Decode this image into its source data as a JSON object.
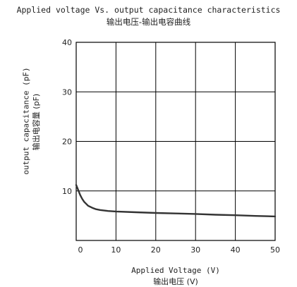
{
  "chart_data": {
    "type": "line",
    "title": "Applied voltage Vs. output capacitance characteristics",
    "title_cn": "输出电压-输出电容曲线",
    "xlabel": "Applied Voltage (V)",
    "xlabel_cn": "输出电压 (V)",
    "ylabel": "output capacitance (pF)",
    "ylabel_cn": "输出电容量 (pF)",
    "xlim": [
      0,
      50
    ],
    "ylim": [
      0,
      40
    ],
    "xticks": [
      0,
      10,
      20,
      30,
      40,
      50
    ],
    "yticks": [
      10,
      20,
      30,
      40
    ],
    "grid": true,
    "line_color": "#333333",
    "series": [
      {
        "x": [
          0,
          0.5,
          1,
          1.5,
          2,
          3,
          4,
          5,
          6,
          8,
          10,
          15,
          20,
          25,
          30,
          35,
          40,
          45,
          50
        ],
        "values": [
          11.2,
          10.2,
          9.2,
          8.4,
          7.8,
          7.0,
          6.6,
          6.3,
          6.15,
          5.95,
          5.85,
          5.7,
          5.55,
          5.45,
          5.35,
          5.2,
          5.1,
          4.95,
          4.85
        ]
      }
    ]
  }
}
